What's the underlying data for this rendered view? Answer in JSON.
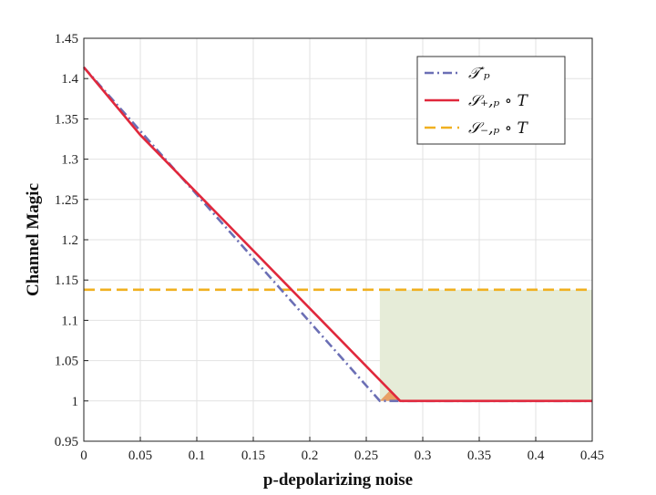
{
  "chart_data": {
    "type": "line",
    "xlabel": "p-depolarizing noise",
    "ylabel": "Channel Magic",
    "xlim": [
      0,
      0.45
    ],
    "ylim": [
      0.95,
      1.45
    ],
    "xticks": [
      "0",
      "0.05",
      "0.1",
      "0.15",
      "0.2",
      "0.25",
      "0.3",
      "0.35",
      "0.4",
      "0.45"
    ],
    "yticks": [
      "0.95",
      "1",
      "1.05",
      "1.1",
      "1.15",
      "1.2",
      "1.25",
      "1.3",
      "1.35",
      "1.4",
      "1.45"
    ],
    "grid": true,
    "legend_position": "top-right",
    "series": [
      {
        "name": "𝒯′ₚ",
        "style": "dash-dot",
        "color": "#6b6fb5",
        "x": [
          0,
          0.262,
          0.45
        ],
        "y": [
          1.414,
          1.0,
          1.0
        ]
      },
      {
        "name": "𝒮₊,ₚ ∘ T",
        "style": "solid",
        "color": "#e0283c",
        "x": [
          0,
          0.05,
          0.28,
          0.45
        ],
        "y": [
          1.414,
          1.33,
          1.0,
          1.0
        ]
      },
      {
        "name": "𝒮₋,ₚ ∘ T",
        "style": "dashed",
        "color": "#f0b020",
        "x": [
          0,
          0.45
        ],
        "y": [
          1.138,
          1.138
        ]
      }
    ],
    "shaded_regions": [
      {
        "color": "#e6ecd8",
        "x": [
          0.262,
          0.45
        ],
        "y": [
          1.0,
          1.138
        ]
      },
      {
        "color": "#e8985a",
        "triangle_x": [
          0.262,
          0.28,
          0.271
        ],
        "triangle_y": [
          1.0,
          1.0,
          1.013
        ]
      }
    ]
  }
}
